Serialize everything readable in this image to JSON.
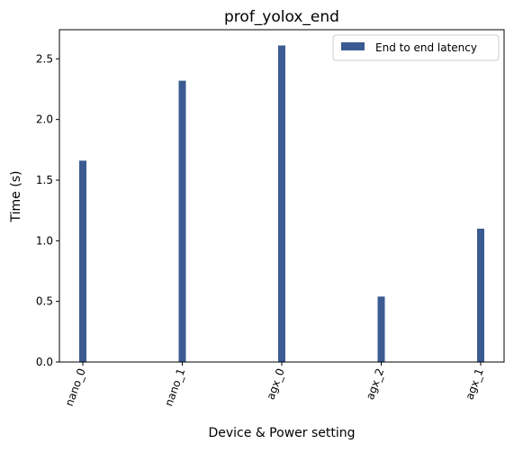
{
  "chart_data": {
    "type": "bar",
    "title": "prof_yolox_end",
    "xlabel": "Device & Power setting",
    "ylabel": "Time (s)",
    "categories": [
      "nano_0",
      "nano_1",
      "agx_0",
      "agx_2",
      "agx_1"
    ],
    "series": [
      {
        "name": "End to end latency",
        "values": [
          1.66,
          2.32,
          2.61,
          0.54,
          1.1
        ],
        "color": "#3b5b92"
      }
    ],
    "ylim": [
      0,
      2.74
    ],
    "yticks": [
      0.0,
      0.5,
      1.0,
      1.5,
      2.0,
      2.5
    ],
    "ytick_labels": [
      "0.0",
      "0.5",
      "1.0",
      "1.5",
      "2.0",
      "2.5"
    ],
    "grid": false,
    "legend_position": "top-right"
  }
}
